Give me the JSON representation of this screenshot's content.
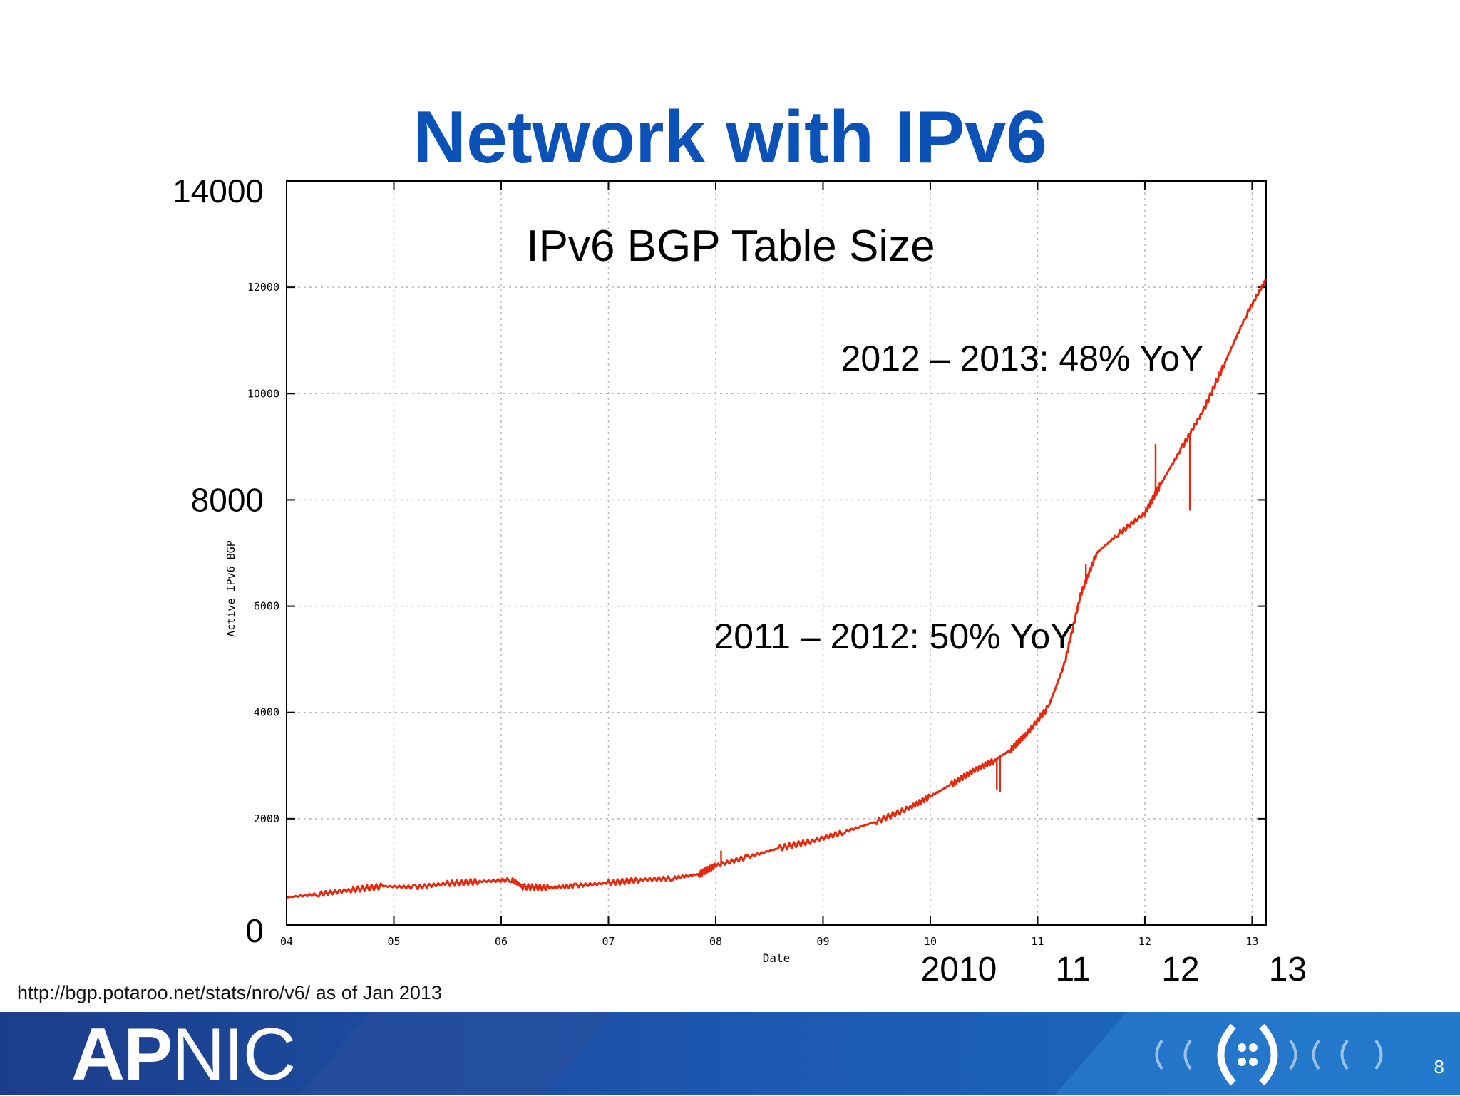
{
  "slide": {
    "title": "Network with IPv6",
    "source": "http://bgp.potaroo.net/stats/nro/v6/  as of Jan 2013",
    "page_number": "8",
    "logo_ap": "AP",
    "logo_nic": "NIC"
  },
  "colors": {
    "title": "#0a52b8",
    "series": "#e8280c",
    "footer_dark": "#1c3d8a",
    "footer_light": "#1a6fc4"
  },
  "chart_data": {
    "type": "line",
    "title": "IPv6 BGP Table Size",
    "xlabel": "Date",
    "ylabel": "Active IPv6 BGP",
    "xlim": [
      2004.0,
      2013.13
    ],
    "ylim": [
      0,
      14000
    ],
    "grid": true,
    "x_ticks": [
      "04",
      "05",
      "06",
      "07",
      "08",
      "09",
      "10",
      "11",
      "12",
      "13"
    ],
    "y_ticks": [
      "2000",
      "4000",
      "6000",
      "10000",
      "12000"
    ],
    "big_y_labels": [
      "0",
      "8000",
      "14000"
    ],
    "big_x_labels": [
      "2010",
      "11",
      "12",
      "13"
    ],
    "annotations": [
      "2011 – 2012: 50% YoY",
      "2012 – 2013: 48% YoY"
    ],
    "series": [
      {
        "x": [
          2004.0,
          2004.3,
          2004.6,
          2004.9,
          2005.2,
          2005.5,
          2005.8,
          2006.1,
          2006.2,
          2006.45,
          2006.7,
          2007.0,
          2007.3,
          2007.6,
          2007.85,
          2008.0,
          2008.3,
          2008.6,
          2008.9,
          2009.2,
          2009.5,
          2009.8,
          2010.0,
          2010.2,
          2010.4,
          2010.6,
          2010.75,
          2010.9,
          2011.1,
          2011.25,
          2011.4,
          2011.55,
          2011.75,
          2012.0,
          2012.15,
          2012.35,
          2012.55,
          2012.75,
          2012.95,
          2013.13
        ],
        "y": [
          520,
          580,
          660,
          730,
          710,
          780,
          820,
          850,
          720,
          700,
          740,
          790,
          850,
          880,
          960,
          1120,
          1280,
          1450,
          1580,
          1750,
          1950,
          2200,
          2420,
          2650,
          2900,
          3100,
          3300,
          3600,
          4100,
          4900,
          6200,
          7000,
          7350,
          7750,
          8300,
          9000,
          9700,
          10600,
          11500,
          12150
        ]
      }
    ],
    "spikes": [
      {
        "x": 2008.05,
        "to": 1400
      },
      {
        "x": 2010.62,
        "to": 2550
      },
      {
        "x": 2010.65,
        "to": 2500
      },
      {
        "x": 2011.45,
        "to": 6800
      },
      {
        "x": 2012.1,
        "to": 9050
      },
      {
        "x": 2012.42,
        "to": 7800
      }
    ]
  }
}
